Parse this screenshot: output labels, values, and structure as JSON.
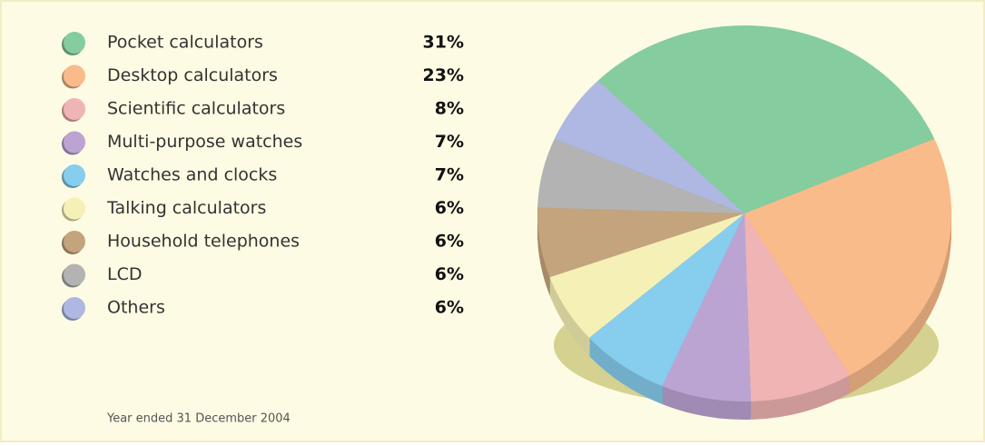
{
  "chart_data": {
    "type": "pie",
    "categories": [
      "Pocket calculators",
      "Desktop calculators",
      "Scientific calculators",
      "Multi-purpose watches",
      "Watches and clocks",
      "Talking calculators",
      "Household telephones",
      "LCD",
      "Others"
    ],
    "values": [
      31,
      23,
      8,
      7,
      7,
      6,
      6,
      6,
      6
    ],
    "value_labels": [
      "31%",
      "23%",
      "8%",
      "7%",
      "7%",
      "6%",
      "6%",
      "6%",
      "6%"
    ],
    "colors": [
      "#85cc9e",
      "#f9bb8a",
      "#f0b4b4",
      "#bba4d2",
      "#86cdee",
      "#f5f0b5",
      "#c3a47c",
      "#b3b3b3",
      "#aeb8e2"
    ],
    "note": "Year ended 31 December 2004"
  }
}
